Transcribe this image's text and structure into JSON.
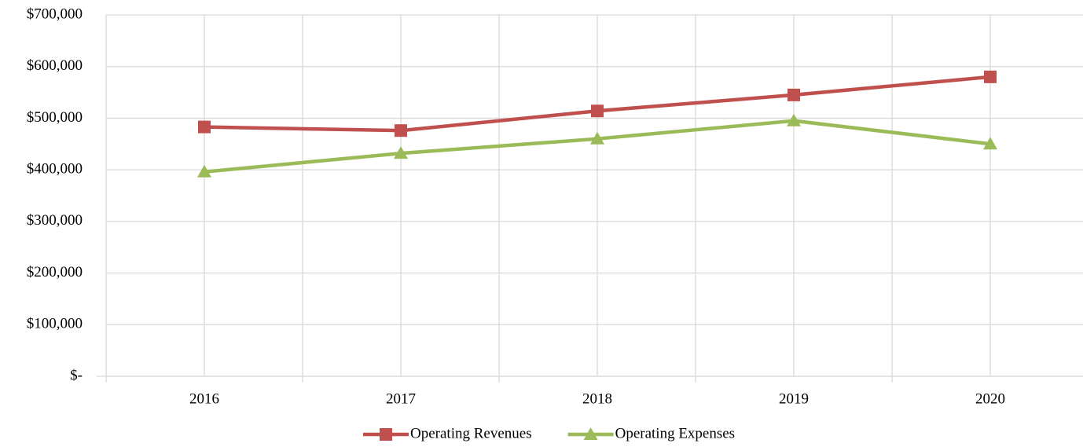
{
  "chart_data": {
    "type": "line",
    "categories": [
      "2016",
      "2017",
      "2018",
      "2019",
      "2020"
    ],
    "series": [
      {
        "name": "Operating Revenues",
        "color": "#c0504d",
        "marker": "square",
        "values": [
          483000,
          476000,
          514000,
          545000,
          580000
        ]
      },
      {
        "name": "Operating Expenses",
        "color": "#9bbb59",
        "marker": "triangle",
        "values": [
          396000,
          432000,
          460000,
          495000,
          450000
        ]
      }
    ],
    "ylim": [
      0,
      700000
    ],
    "yticks": [
      {
        "value": 0,
        "label": "$-"
      },
      {
        "value": 100000,
        "label": "$100,000"
      },
      {
        "value": 200000,
        "label": "$200,000"
      },
      {
        "value": 300000,
        "label": "$300,000"
      },
      {
        "value": 400000,
        "label": "$400,000"
      },
      {
        "value": 500000,
        "label": "$500,000"
      },
      {
        "value": 600000,
        "label": "$600,000"
      },
      {
        "value": 700000,
        "label": "$700,000"
      }
    ],
    "grid": true,
    "legend": "bottom"
  }
}
